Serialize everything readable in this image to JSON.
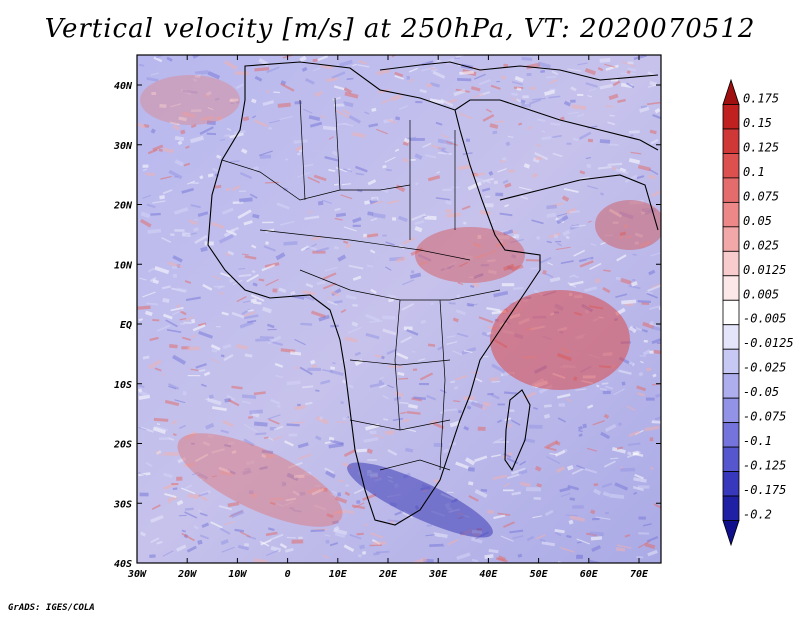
{
  "title": "Vertical velocity [m/s] at 250hPa, VT: 2020070512",
  "footer": "GrADS: IGES/COLA",
  "lat_ticks": [
    "40N",
    "30N",
    "20N",
    "10N",
    "EQ",
    "10S",
    "20S",
    "30S",
    "40S"
  ],
  "lon_ticks": [
    "30W",
    "20W",
    "10W",
    "0",
    "10E",
    "20E",
    "30E",
    "40E",
    "50E",
    "60E",
    "70E"
  ],
  "colorbar": {
    "labels": [
      "0.175",
      "0.15",
      "0.125",
      "0.1",
      "0.075",
      "0.05",
      "0.025",
      "0.0125",
      "0.005",
      "-0.005",
      "-0.0125",
      "-0.025",
      "-0.05",
      "-0.075",
      "-0.1",
      "-0.125",
      "-0.175",
      "-0.2"
    ],
    "colors": [
      "#a01010",
      "#c02020",
      "#d03838",
      "#dc5050",
      "#e46c6c",
      "#ec8888",
      "#f2a8a8",
      "#f8cccc",
      "#fce8e8",
      "#ffffff",
      "#e4e4fa",
      "#c8c8f4",
      "#aeaeee",
      "#9292e6",
      "#7474dc",
      "#5656ce",
      "#3838bc",
      "#2020a4",
      "#10108c"
    ]
  }
}
